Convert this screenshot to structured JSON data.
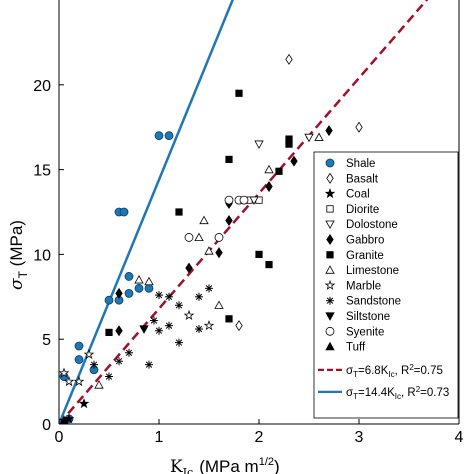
{
  "chart_data": {
    "type": "scatter",
    "xlabel": "K",
    "xlabel_sub": "Ic",
    "xlabel_units": "(MPa m",
    "xlabel_sup": "1/2",
    "xlabel_close": ")",
    "ylabel": "σ",
    "ylabel_sub": "T",
    "ylabel_units": " (MPa)",
    "xlim": [
      0,
      4
    ],
    "ylim": [
      0,
      25
    ],
    "xticks": [
      0,
      1,
      2,
      3,
      4
    ],
    "yticks": [
      0,
      5,
      10,
      15,
      20
    ],
    "xtick_labels": [
      "0",
      "1",
      "2",
      "3",
      "4"
    ],
    "ytick_labels": [
      "0",
      "5",
      "10",
      "15",
      "20"
    ],
    "grid": false,
    "legend_position": "right",
    "series": [
      {
        "name": "Shale",
        "marker": "circle-filled",
        "color": "#1f77b4",
        "points": [
          [
            0.05,
            2.8
          ],
          [
            0.2,
            4.6
          ],
          [
            0.2,
            3.8
          ],
          [
            0.5,
            7.3
          ],
          [
            0.6,
            7.3
          ],
          [
            0.7,
            7.7
          ],
          [
            0.6,
            12.5
          ],
          [
            0.65,
            12.5
          ],
          [
            0.7,
            8.7
          ],
          [
            0.8,
            8.0
          ],
          [
            0.9,
            8.0
          ],
          [
            1.0,
            17.0
          ],
          [
            1.1,
            17.0
          ],
          [
            0.35,
            3.2
          ],
          [
            0.1,
            0.3
          ]
        ]
      },
      {
        "name": "Basalt",
        "marker": "diamond",
        "color": "#000000",
        "points": [
          [
            2.3,
            21.5
          ],
          [
            3.0,
            17.5
          ],
          [
            1.8,
            5.8
          ]
        ]
      },
      {
        "name": "Coal",
        "marker": "star-filled",
        "color": "#000000",
        "points": [
          [
            0.05,
            0.2
          ],
          [
            0.1,
            0.3
          ],
          [
            0.25,
            1.2
          ]
        ]
      },
      {
        "name": "Diorite",
        "marker": "square",
        "color": "#000000",
        "points": [
          [
            1.9,
            13.2
          ],
          [
            2.0,
            13.2
          ]
        ]
      },
      {
        "name": "Dolostone",
        "marker": "triangle-down",
        "color": "#000000",
        "points": [
          [
            1.95,
            13.2
          ],
          [
            2.0,
            16.5
          ],
          [
            2.5,
            16.9
          ]
        ]
      },
      {
        "name": "Gabbro",
        "marker": "diamond-filled",
        "color": "#000000",
        "points": [
          [
            0.6,
            5.5
          ],
          [
            0.6,
            7.7
          ],
          [
            1.3,
            9.2
          ],
          [
            1.6,
            10.1
          ],
          [
            1.7,
            12.0
          ],
          [
            1.7,
            13.0
          ],
          [
            2.1,
            14.0
          ],
          [
            2.35,
            15.5
          ],
          [
            2.7,
            17.3
          ]
        ]
      },
      {
        "name": "Granite",
        "marker": "square-filled",
        "color": "#000000",
        "points": [
          [
            0.5,
            5.4
          ],
          [
            1.2,
            12.5
          ],
          [
            1.7,
            15.6
          ],
          [
            1.8,
            19.5
          ],
          [
            2.2,
            14.9
          ],
          [
            2.3,
            16.5
          ],
          [
            2.3,
            16.8
          ],
          [
            2.0,
            10.0
          ],
          [
            2.1,
            9.4
          ],
          [
            1.7,
            6.2
          ]
        ]
      },
      {
        "name": "Limestone",
        "marker": "triangle",
        "color": "#000000",
        "points": [
          [
            0.8,
            8.5
          ],
          [
            0.9,
            8.4
          ],
          [
            1.4,
            11.0
          ],
          [
            1.45,
            12.0
          ],
          [
            1.5,
            10.2
          ],
          [
            1.6,
            7.0
          ],
          [
            2.1,
            15.0
          ],
          [
            2.6,
            16.9
          ],
          [
            0.4,
            2.3
          ]
        ]
      },
      {
        "name": "Marble",
        "marker": "star",
        "color": "#000000",
        "points": [
          [
            0.05,
            3.0
          ],
          [
            0.1,
            2.5
          ],
          [
            0.2,
            2.5
          ],
          [
            0.3,
            4.1
          ],
          [
            1.3,
            6.4
          ],
          [
            1.5,
            5.8
          ]
        ]
      },
      {
        "name": "Sandstone",
        "marker": "asterisk",
        "color": "#000000",
        "points": [
          [
            0.35,
            3.5
          ],
          [
            0.6,
            3.7
          ],
          [
            0.7,
            4.2
          ],
          [
            0.9,
            3.5
          ],
          [
            1.0,
            5.5
          ],
          [
            1.1,
            5.8
          ],
          [
            1.2,
            7.0
          ],
          [
            1.4,
            7.5
          ],
          [
            1.5,
            8.0
          ],
          [
            1.0,
            7.6
          ],
          [
            1.1,
            7.5
          ],
          [
            1.2,
            4.8
          ],
          [
            1.4,
            5.6
          ],
          [
            0.5,
            2.8
          ],
          [
            0.95,
            6.1
          ]
        ]
      },
      {
        "name": "Siltstone",
        "marker": "triangle-down-filled",
        "color": "#000000",
        "points": [
          [
            0.85,
            5.6
          ]
        ]
      },
      {
        "name": "Syenite",
        "marker": "circle",
        "color": "#000000",
        "points": [
          [
            1.3,
            11.0
          ],
          [
            1.6,
            11.0
          ],
          [
            1.7,
            13.2
          ],
          [
            1.8,
            13.2
          ],
          [
            1.85,
            13.2
          ]
        ]
      },
      {
        "name": "Tuff",
        "marker": "triangle-filled",
        "color": "#000000",
        "points": [
          [
            0.05,
            0.2
          ]
        ]
      }
    ],
    "fits": [
      {
        "name_prefix": "σ",
        "name_sub": "T",
        "name_mid": "=6.8K",
        "name_sub2": "Ic",
        "name_suffix": ", R",
        "name_sup": "2",
        "name_end": "=0.75",
        "slope": 6.8,
        "color": "#a0102b",
        "dash": true
      },
      {
        "name_prefix": "σ",
        "name_sub": "T",
        "name_mid": "=14.4K",
        "name_sub2": "Ic",
        "name_suffix": ", R",
        "name_sup": "2",
        "name_end": "=0.73",
        "slope": 14.4,
        "color": "#1f77b4",
        "dash": false
      }
    ]
  }
}
